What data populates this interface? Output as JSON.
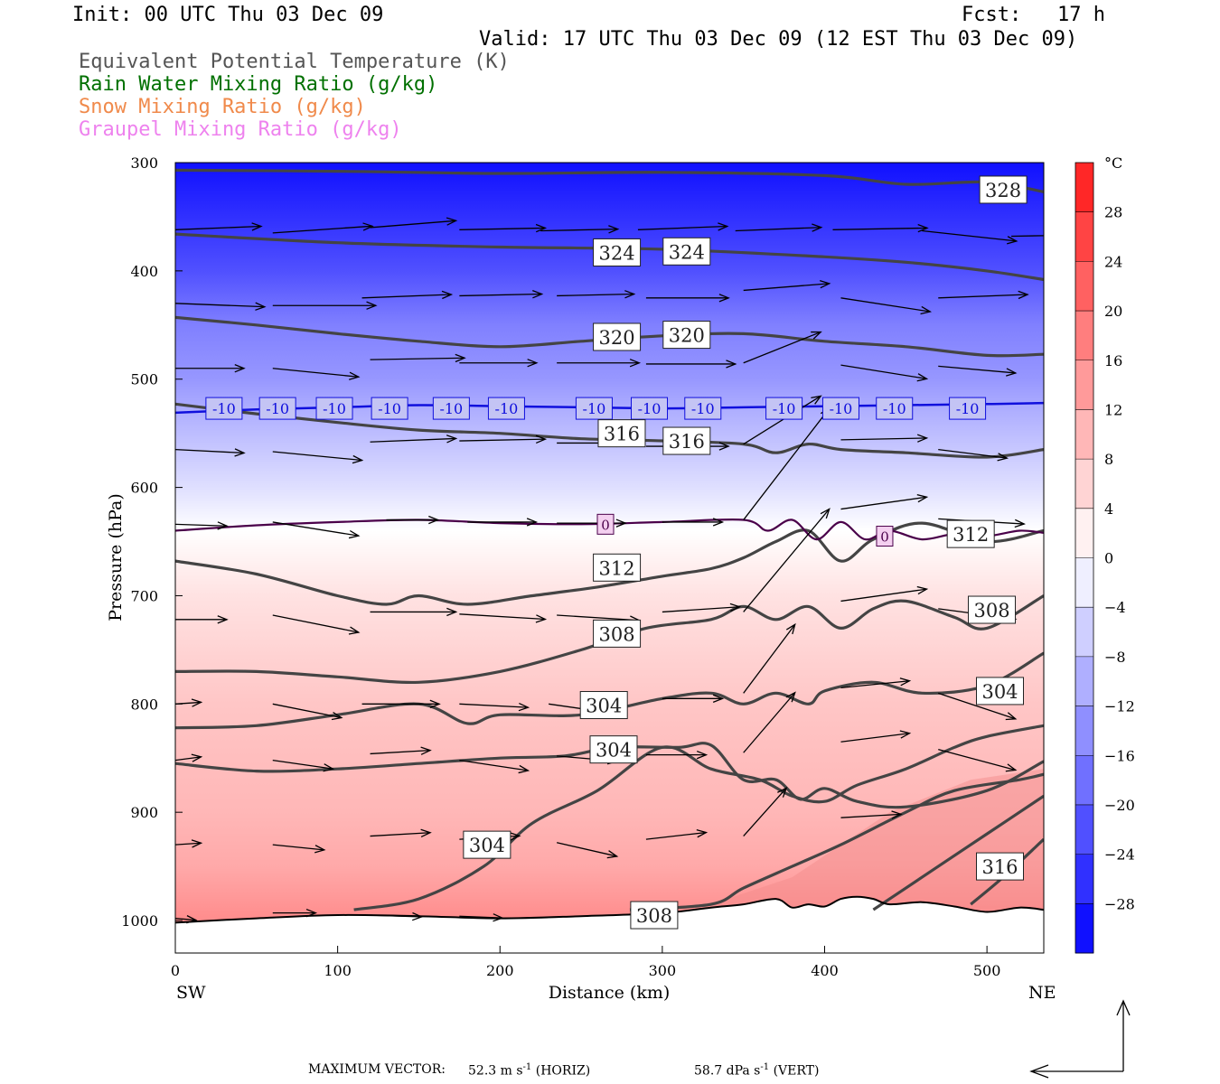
{
  "header": {
    "init": "Init: 00 UTC Thu 03 Dec 09",
    "fcst": "Fcst:   17 h",
    "valid": "Valid: 17 UTC Thu 03 Dec 09 (12 EST Thu 03 Dec 09)",
    "fields": [
      {
        "text": "Equivalent Potential Temperature (K)",
        "color": "#555555"
      },
      {
        "text": "Rain Water Mixing Ratio (g/kg)",
        "color": "#007000"
      },
      {
        "text": "Snow Mixing Ratio (g/kg)",
        "color": "#f08a4b"
      },
      {
        "text": "Graupel Mixing Ratio (g/kg)",
        "color": "#ee82ee"
      }
    ]
  },
  "chart_data": {
    "type": "heatmap",
    "description_fields": [
      "temperature",
      "theta_e",
      "wind_vectors"
    ],
    "xlabel": "Distance (km)",
    "ylabel": "Pressure (hPa)",
    "xlim": [
      0,
      535
    ],
    "ylim": [
      1030,
      300
    ],
    "xticks": [
      0,
      100,
      200,
      300,
      400,
      500
    ],
    "yticks": [
      300,
      400,
      500,
      600,
      700,
      800,
      900,
      1000
    ],
    "x_end_labels": {
      "left": "SW",
      "right": "NE"
    },
    "colorbar": {
      "unit": "°C",
      "min": -32,
      "max": 32,
      "step": 4,
      "tick_labels": [
        28,
        24,
        20,
        16,
        12,
        8,
        4,
        0,
        -4,
        -8,
        -12,
        -16,
        -20,
        -24,
        -28
      ]
    },
    "temperature_profile": [
      {
        "p": 300,
        "t": -30
      },
      {
        "p": 400,
        "t": -22
      },
      {
        "p": 450,
        "t": -16
      },
      {
        "p": 500,
        "t": -13
      },
      {
        "p": 530,
        "t": -10
      },
      {
        "p": 600,
        "t": -4
      },
      {
        "p": 640,
        "t": 0
      },
      {
        "p": 700,
        "t": 4
      },
      {
        "p": 800,
        "t": 8
      },
      {
        "p": 850,
        "t": 9
      },
      {
        "p": 900,
        "t": 10
      },
      {
        "p": 950,
        "t": 12
      },
      {
        "p": 1000,
        "t": 16
      }
    ],
    "isotherm_minus10": {
      "x": [
        0,
        50,
        100,
        150,
        200,
        250,
        300,
        350,
        400,
        450,
        500,
        535
      ],
      "p": [
        531,
        528,
        526,
        524,
        525,
        526,
        527,
        526,
        525,
        524,
        523,
        522
      ],
      "labels": [
        {
          "x": 30,
          "text": "-10"
        },
        {
          "x": 63,
          "text": "-10"
        },
        {
          "x": 98,
          "text": "-10"
        },
        {
          "x": 132,
          "text": "-10"
        },
        {
          "x": 170,
          "text": "-10"
        },
        {
          "x": 204,
          "text": "-10"
        },
        {
          "x": 258,
          "text": "-10"
        },
        {
          "x": 292,
          "text": "-10"
        },
        {
          "x": 325,
          "text": "-10"
        },
        {
          "x": 375,
          "text": "-10"
        },
        {
          "x": 410,
          "text": "-10"
        },
        {
          "x": 443,
          "text": "-10"
        },
        {
          "x": 488,
          "text": "-10"
        }
      ]
    },
    "isotherm_zero": {
      "x": [
        0,
        50,
        100,
        150,
        200,
        250,
        300,
        350,
        365,
        380,
        395,
        410,
        425,
        440,
        460,
        480,
        500,
        520,
        535
      ],
      "p": [
        640,
        635,
        632,
        630,
        633,
        634,
        632,
        630,
        640,
        630,
        648,
        632,
        648,
        640,
        648,
        643,
        645,
        640,
        642
      ],
      "labels": [
        {
          "x": 265,
          "text": "0"
        },
        {
          "x": 437,
          "text": "0"
        }
      ]
    },
    "theta_e_contours": [
      {
        "level": 328,
        "x": [
          0,
          100,
          200,
          300,
          400,
          450,
          500,
          535
        ],
        "p": [
          307,
          308,
          310,
          309,
          312,
          320,
          318,
          327
        ]
      },
      {
        "level": 324,
        "x": [
          0,
          100,
          200,
          300,
          400,
          450,
          500,
          535
        ],
        "p": [
          366,
          374,
          378,
          380,
          387,
          392,
          400,
          408
        ]
      },
      {
        "level": 320,
        "x": [
          0,
          50,
          100,
          150,
          200,
          250,
          300,
          350,
          400,
          450,
          500,
          535
        ],
        "p": [
          443,
          450,
          458,
          465,
          470,
          465,
          460,
          458,
          465,
          470,
          478,
          477
        ]
      },
      {
        "level": 316,
        "x": [
          0,
          50,
          100,
          150,
          200,
          250,
          300,
          350,
          370,
          390,
          410,
          450,
          500,
          535
        ],
        "p": [
          523,
          532,
          540,
          547,
          550,
          555,
          557,
          560,
          568,
          560,
          565,
          568,
          572,
          565
        ]
      },
      {
        "level": 312,
        "x": [
          0,
          50,
          100,
          130,
          150,
          180,
          220,
          260,
          300,
          330,
          350,
          370,
          390,
          410,
          430,
          460,
          500,
          535
        ],
        "p": [
          668,
          680,
          700,
          708,
          700,
          708,
          700,
          692,
          682,
          675,
          665,
          650,
          640,
          668,
          648,
          633,
          650,
          640
        ]
      },
      {
        "level": 308,
        "x": [
          0,
          50,
          100,
          150,
          200,
          250,
          290,
          330,
          350,
          370,
          390,
          410,
          430,
          450,
          480,
          500,
          535
        ],
        "p": [
          770,
          770,
          775,
          780,
          770,
          750,
          730,
          722,
          710,
          722,
          710,
          730,
          712,
          705,
          720,
          730,
          700
        ]
      },
      {
        "level": 304,
        "x": [
          0,
          50,
          100,
          150,
          180,
          200,
          250,
          300,
          330,
          350,
          370,
          390,
          400,
          430,
          460,
          500,
          535
        ],
        "p": [
          822,
          820,
          810,
          800,
          818,
          810,
          810,
          795,
          790,
          800,
          790,
          800,
          788,
          780,
          790,
          783,
          753
        ]
      },
      {
        "level": 304,
        "x": [
          0,
          50,
          100,
          150,
          200,
          240,
          270,
          310,
          330,
          350,
          370,
          385,
          400,
          420,
          450,
          500,
          535
        ],
        "p": [
          855,
          862,
          860,
          855,
          850,
          848,
          840,
          840,
          838,
          870,
          870,
          888,
          878,
          890,
          895,
          880,
          853
        ]
      },
      {
        "level": 304,
        "x": [
          110,
          150,
          190,
          220,
          260,
          300,
          330,
          360,
          380,
          400,
          420,
          450,
          480,
          500,
          535
        ],
        "p": [
          990,
          980,
          950,
          910,
          880,
          840,
          860,
          870,
          885,
          890,
          875,
          860,
          840,
          830,
          820
        ]
      },
      {
        "level": 308,
        "x": [
          280,
          330,
          350,
          380,
          410,
          450,
          480,
          520,
          535
        ],
        "p": [
          990,
          985,
          970,
          950,
          930,
          900,
          880,
          870,
          865
        ]
      },
      {
        "level": 316,
        "x": [
          430,
          460,
          490,
          510,
          535
        ],
        "p": [
          990,
          960,
          930,
          910,
          885
        ]
      },
      {
        "level": 316,
        "x": [
          490,
          510,
          535
        ],
        "p": [
          985,
          960,
          925
        ]
      }
    ],
    "contour_labels": [
      {
        "text": "328",
        "x": 510,
        "p": 325
      },
      {
        "text": "324",
        "x": 272,
        "p": 383
      },
      {
        "text": "324",
        "x": 315,
        "p": 382
      },
      {
        "text": "320",
        "x": 272,
        "p": 461
      },
      {
        "text": "320",
        "x": 315,
        "p": 459
      },
      {
        "text": "316",
        "x": 275,
        "p": 550
      },
      {
        "text": "316",
        "x": 315,
        "p": 557
      },
      {
        "text": "312",
        "x": 272,
        "p": 674
      },
      {
        "text": "312",
        "x": 490,
        "p": 643
      },
      {
        "text": "308",
        "x": 272,
        "p": 735
      },
      {
        "text": "308",
        "x": 503,
        "p": 713
      },
      {
        "text": "304",
        "x": 264,
        "p": 801
      },
      {
        "text": "304",
        "x": 508,
        "p": 788
      },
      {
        "text": "304",
        "x": 270,
        "p": 842
      },
      {
        "text": "304",
        "x": 192,
        "p": 930
      },
      {
        "text": "316",
        "x": 508,
        "p": 950
      },
      {
        "text": "308",
        "x": 295,
        "p": 995
      }
    ],
    "ground_surface": {
      "x": [
        0,
        50,
        100,
        150,
        200,
        250,
        300,
        330,
        350,
        370,
        380,
        390,
        400,
        410,
        420,
        430,
        440,
        460,
        480,
        500,
        520,
        535
      ],
      "p": [
        1002,
        998,
        995,
        996,
        998,
        996,
        993,
        988,
        985,
        980,
        988,
        985,
        987,
        980,
        978,
        980,
        985,
        983,
        987,
        992,
        988,
        990
      ]
    },
    "wind_vectors": [
      {
        "x": 0,
        "p": 362,
        "u": 50,
        "v": -2
      },
      {
        "x": 60,
        "p": 365,
        "u": 58,
        "v": -4
      },
      {
        "x": 120,
        "p": 360,
        "u": 50,
        "v": -4
      },
      {
        "x": 175,
        "p": 362,
        "u": 50,
        "v": -1
      },
      {
        "x": 225,
        "p": 363,
        "u": 45,
        "v": -1
      },
      {
        "x": 285,
        "p": 362,
        "u": 52,
        "v": -2
      },
      {
        "x": 345,
        "p": 363,
        "u": 50,
        "v": -2
      },
      {
        "x": 405,
        "p": 362,
        "u": 55,
        "v": -1
      },
      {
        "x": 460,
        "p": 363,
        "u": 55,
        "v": 6
      },
      {
        "x": 515,
        "p": 368,
        "u": 55,
        "v": -1
      },
      {
        "x": 0,
        "p": 430,
        "u": 52,
        "v": 2
      },
      {
        "x": 60,
        "p": 432,
        "u": 60,
        "v": 0
      },
      {
        "x": 115,
        "p": 425,
        "u": 52,
        "v": -2
      },
      {
        "x": 175,
        "p": 423,
        "u": 48,
        "v": -1
      },
      {
        "x": 235,
        "p": 423,
        "u": 45,
        "v": -1
      },
      {
        "x": 290,
        "p": 425,
        "u": 48,
        "v": 0
      },
      {
        "x": 350,
        "p": 418,
        "u": 50,
        "v": -4
      },
      {
        "x": 410,
        "p": 425,
        "u": 52,
        "v": 8
      },
      {
        "x": 470,
        "p": 425,
        "u": 52,
        "v": -2
      },
      {
        "x": 0,
        "p": 490,
        "u": 40,
        "v": 0
      },
      {
        "x": 60,
        "p": 490,
        "u": 50,
        "v": 5
      },
      {
        "x": 120,
        "p": 482,
        "u": 55,
        "v": -1
      },
      {
        "x": 175,
        "p": 485,
        "u": 45,
        "v": 0
      },
      {
        "x": 235,
        "p": 485,
        "u": 48,
        "v": 0
      },
      {
        "x": 290,
        "p": 486,
        "u": 52,
        "v": 0
      },
      {
        "x": 350,
        "p": 485,
        "u": 45,
        "v": -18
      },
      {
        "x": 410,
        "p": 487,
        "u": 50,
        "v": 8
      },
      {
        "x": 470,
        "p": 488,
        "u": 45,
        "v": 4
      },
      {
        "x": 0,
        "p": 565,
        "u": 40,
        "v": 2
      },
      {
        "x": 60,
        "p": 567,
        "u": 52,
        "v": 5
      },
      {
        "x": 120,
        "p": 558,
        "u": 50,
        "v": -2
      },
      {
        "x": 175,
        "p": 557,
        "u": 50,
        "v": -1
      },
      {
        "x": 235,
        "p": 559,
        "u": 40,
        "v": 0
      },
      {
        "x": 290,
        "p": 562,
        "u": 48,
        "v": 0
      },
      {
        "x": 350,
        "p": 560,
        "u": 45,
        "v": -28
      },
      {
        "x": 410,
        "p": 556,
        "u": 50,
        "v": -1
      },
      {
        "x": 470,
        "p": 565,
        "u": 40,
        "v": 5
      },
      {
        "x": 0,
        "p": 634,
        "u": 30,
        "v": 1
      },
      {
        "x": 60,
        "p": 632,
        "u": 50,
        "v": 8
      },
      {
        "x": 130,
        "p": 630,
        "u": 30,
        "v": 0
      },
      {
        "x": 180,
        "p": 632,
        "u": 40,
        "v": 0
      },
      {
        "x": 235,
        "p": 633,
        "u": 40,
        "v": 0
      },
      {
        "x": 300,
        "p": 632,
        "u": 35,
        "v": 0
      },
      {
        "x": 350,
        "p": 630,
        "u": 50,
        "v": -65
      },
      {
        "x": 410,
        "p": 620,
        "u": 50,
        "v": -7
      },
      {
        "x": 470,
        "p": 629,
        "u": 50,
        "v": 3
      },
      {
        "x": 0,
        "p": 722,
        "u": 30,
        "v": 0
      },
      {
        "x": 60,
        "p": 718,
        "u": 50,
        "v": 10
      },
      {
        "x": 120,
        "p": 715,
        "u": 50,
        "v": 0
      },
      {
        "x": 175,
        "p": 717,
        "u": 50,
        "v": 3
      },
      {
        "x": 235,
        "p": 718,
        "u": 48,
        "v": 3
      },
      {
        "x": 300,
        "p": 715,
        "u": 45,
        "v": -3
      },
      {
        "x": 350,
        "p": 715,
        "u": 50,
        "v": -60
      },
      {
        "x": 410,
        "p": 705,
        "u": 50,
        "v": -7
      },
      {
        "x": 470,
        "p": 712,
        "u": 45,
        "v": 6
      },
      {
        "x": 0,
        "p": 800,
        "u": 15,
        "v": -1
      },
      {
        "x": 60,
        "p": 800,
        "u": 40,
        "v": 8
      },
      {
        "x": 115,
        "p": 800,
        "u": 45,
        "v": 0
      },
      {
        "x": 175,
        "p": 800,
        "u": 40,
        "v": 2
      },
      {
        "x": 230,
        "p": 800,
        "u": 35,
        "v": 5
      },
      {
        "x": 300,
        "p": 795,
        "u": 35,
        "v": 0
      },
      {
        "x": 350,
        "p": 790,
        "u": 30,
        "v": -40
      },
      {
        "x": 410,
        "p": 785,
        "u": 40,
        "v": -4
      },
      {
        "x": 470,
        "p": 790,
        "u": 45,
        "v": 15
      },
      {
        "x": 0,
        "p": 852,
        "u": 15,
        "v": -2
      },
      {
        "x": 60,
        "p": 852,
        "u": 35,
        "v": 5
      },
      {
        "x": 120,
        "p": 846,
        "u": 35,
        "v": -2
      },
      {
        "x": 175,
        "p": 852,
        "u": 40,
        "v": 6
      },
      {
        "x": 235,
        "p": 848,
        "u": 35,
        "v": 3
      },
      {
        "x": 290,
        "p": 847,
        "u": 35,
        "v": 0
      },
      {
        "x": 350,
        "p": 845,
        "u": 30,
        "v": -35
      },
      {
        "x": 410,
        "p": 835,
        "u": 40,
        "v": -5
      },
      {
        "x": 470,
        "p": 842,
        "u": 45,
        "v": 12
      },
      {
        "x": 0,
        "p": 930,
        "u": 15,
        "v": -1
      },
      {
        "x": 60,
        "p": 930,
        "u": 30,
        "v": 3
      },
      {
        "x": 120,
        "p": 922,
        "u": 35,
        "v": -2
      },
      {
        "x": 175,
        "p": 925,
        "u": 35,
        "v": -2
      },
      {
        "x": 235,
        "p": 928,
        "u": 35,
        "v": 8
      },
      {
        "x": 290,
        "p": 925,
        "u": 35,
        "v": -4
      },
      {
        "x": 350,
        "p": 922,
        "u": 25,
        "v": -28
      },
      {
        "x": 410,
        "p": 905,
        "u": 35,
        "v": -2
      },
      {
        "x": 0,
        "p": 998,
        "u": 12,
        "v": 1
      },
      {
        "x": 60,
        "p": 993,
        "u": 25,
        "v": 0
      },
      {
        "x": 120,
        "p": 995,
        "u": 30,
        "v": 1
      },
      {
        "x": 175,
        "p": 996,
        "u": 25,
        "v": 1
      }
    ]
  },
  "footer": {
    "max_vector_label": "MAXIMUM VECTOR:",
    "horiz_value": "52.3 m s",
    "horiz_exp": "-1",
    "horiz_tag": "(HORIZ)",
    "vert_value": "58.7 dPa s",
    "vert_exp": "-1",
    "vert_tag": "(VERT)"
  },
  "colors": {
    "isotherm_minus10": "#1010dd",
    "isotherm_zero": "#4a004a",
    "theta_e": "#444444"
  }
}
